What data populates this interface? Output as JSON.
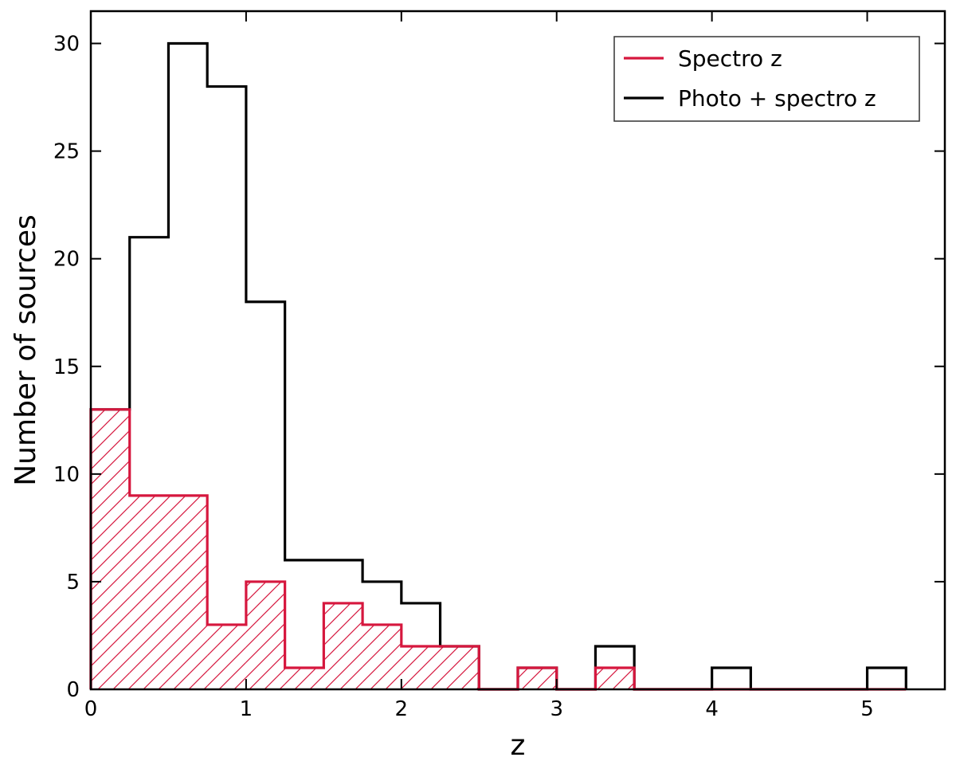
{
  "chart_data": {
    "type": "histogram",
    "title": "",
    "xlabel": "z",
    "ylabel": "Number of sources",
    "xlim": [
      0,
      5.5
    ],
    "ylim": [
      0,
      31.5
    ],
    "xticks": [
      0,
      1,
      2,
      3,
      4,
      5
    ],
    "yticks": [
      0,
      5,
      10,
      15,
      20,
      25,
      30
    ],
    "grid": false,
    "legend_position": "top-right",
    "bin_edges": [
      0,
      0.25,
      0.5,
      0.75,
      1.0,
      1.25,
      1.5,
      1.75,
      2.0,
      2.25,
      2.5,
      2.75,
      3.0,
      3.25,
      3.5,
      3.75,
      4.0,
      4.25,
      4.5,
      4.75,
      5.0,
      5.25
    ],
    "series": [
      {
        "name": "Photo + spectro z",
        "color": "#000000",
        "style": "step-outline",
        "values": [
          13,
          21,
          30,
          28,
          18,
          6,
          6,
          5,
          4,
          2,
          0,
          1,
          0,
          2,
          0,
          0,
          1,
          0,
          0,
          0,
          1
        ]
      },
      {
        "name": "Spectro z",
        "color": "#d6173e",
        "style": "hatched",
        "values": [
          13,
          9,
          9,
          3,
          5,
          1,
          4,
          3,
          2,
          2,
          0,
          1,
          0,
          1,
          0,
          0,
          0,
          0,
          0,
          0,
          0
        ]
      }
    ]
  }
}
